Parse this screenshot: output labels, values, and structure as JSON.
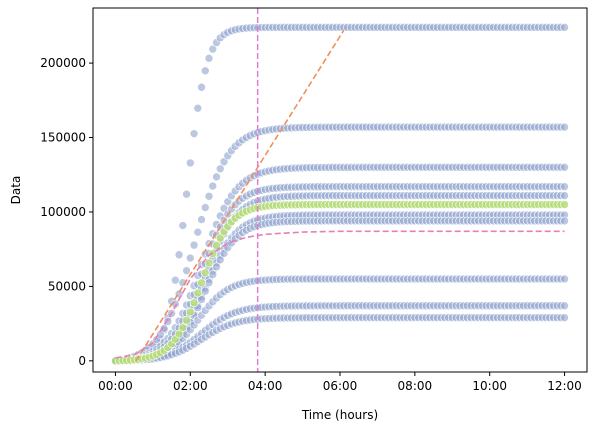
{
  "chart_data": {
    "type": "scatter",
    "title": "",
    "xlabel": "Time (hours)",
    "ylabel": "Data",
    "x_unit": "hours",
    "xlim": [
      -0.6,
      12.6
    ],
    "ylim": [
      -7500,
      237000
    ],
    "x_ticks": [
      0,
      2,
      4,
      6,
      8,
      10,
      12
    ],
    "x_tick_labels": [
      "00:00",
      "02:00",
      "04:00",
      "06:00",
      "08:00",
      "10:00",
      "12:00"
    ],
    "y_ticks": [
      0,
      50000,
      100000,
      150000,
      200000
    ],
    "y_tick_labels": [
      "0",
      "50000",
      "100000",
      "150000",
      "200000"
    ],
    "grid": false,
    "legend": "none",
    "colors": {
      "replicate_points": "#8fa3cf",
      "highlighted_points": "#b5dc7a",
      "tangent_line": "#f28e5c",
      "model_fit": "#e87fb4",
      "vertical_marker": "#e07fcb"
    },
    "series": [
      {
        "kind": "replicate",
        "highlight": false,
        "plateau": 224000,
        "growth_rate": 0.95,
        "midpoint": 1.9,
        "x": [
          0,
          0.5,
          1.0,
          1.5,
          2.0,
          3.0,
          4.0,
          5.0,
          6.0,
          8.0,
          10.0,
          12.0
        ],
        "y": [
          0,
          1500,
          18000,
          70000,
          125000,
          180000,
          203000,
          213000,
          218000,
          222000,
          223000,
          224000
        ]
      },
      {
        "kind": "replicate",
        "highlight": false,
        "plateau": 157000,
        "growth_rate": 0.55,
        "midpoint": 2.1,
        "x": [
          0,
          1.0,
          2.0,
          3.0,
          4.0,
          6.0,
          8.0,
          10.0,
          12.0
        ],
        "y": [
          0,
          10000,
          70000,
          107000,
          121000,
          138000,
          145000,
          151000,
          155000
        ]
      },
      {
        "kind": "replicate",
        "highlight": false,
        "plateau": 130000,
        "growth_rate": 0.55,
        "midpoint": 2.3,
        "x": [
          0,
          1.0,
          2.0,
          3.0,
          4.0,
          6.0,
          8.0,
          10.0,
          12.0
        ],
        "y": [
          0,
          7000,
          55000,
          88000,
          105000,
          116000,
          122000,
          126000,
          128000
        ]
      },
      {
        "kind": "replicate",
        "highlight": false,
        "plateau": 117000,
        "growth_rate": 0.6,
        "midpoint": 2.3,
        "x": [
          0,
          1.0,
          2.0,
          3.0,
          4.0,
          6.0,
          8.0,
          10.0,
          12.0
        ],
        "y": [
          0,
          6000,
          52000,
          83000,
          96000,
          104000,
          109000,
          113000,
          116000
        ]
      },
      {
        "kind": "replicate",
        "highlight": false,
        "plateau": 111000,
        "growth_rate": 0.6,
        "midpoint": 2.4,
        "x": [
          0,
          1.0,
          2.0,
          3.0,
          4.0,
          6.0,
          8.0,
          10.0,
          12.0
        ],
        "y": [
          0,
          5500,
          48000,
          78000,
          90000,
          99000,
          104000,
          108000,
          111000
        ]
      },
      {
        "kind": "replicate",
        "highlight": true,
        "plateau": 105000,
        "growth_rate": 0.65,
        "midpoint": 2.3,
        "x": [
          0,
          1.0,
          2.0,
          3.0,
          4.0,
          6.0,
          8.0,
          10.0,
          12.0
        ],
        "y": [
          0,
          5500,
          50000,
          78000,
          88000,
          95000,
          99000,
          102000,
          104000
        ]
      },
      {
        "kind": "replicate",
        "highlight": false,
        "plateau": 98000,
        "growth_rate": 0.6,
        "midpoint": 2.4,
        "x": [
          0,
          1.0,
          2.0,
          3.0,
          4.0,
          6.0,
          8.0,
          10.0,
          12.0
        ],
        "y": [
          0,
          5000,
          42000,
          68000,
          80000,
          87000,
          92000,
          95000,
          97000
        ]
      },
      {
        "kind": "replicate",
        "highlight": false,
        "plateau": 94000,
        "growth_rate": 0.6,
        "midpoint": 2.4,
        "x": [
          0,
          1.0,
          2.0,
          3.0,
          4.0,
          6.0,
          8.0,
          10.0,
          12.0
        ],
        "y": [
          0,
          4500,
          40000,
          65000,
          76000,
          83000,
          88000,
          91000,
          93000
        ]
      },
      {
        "kind": "replicate",
        "highlight": false,
        "plateau": 55000,
        "growth_rate": 0.6,
        "midpoint": 2.2,
        "x": [
          0,
          1.0,
          2.0,
          3.0,
          4.0,
          6.0,
          8.0,
          10.0,
          12.0
        ],
        "y": [
          0,
          3500,
          25000,
          38000,
          43000,
          47000,
          50000,
          52000,
          53000
        ]
      },
      {
        "kind": "replicate",
        "highlight": false,
        "plateau": 37000,
        "growth_rate": 0.55,
        "midpoint": 2.3,
        "x": [
          0,
          1.0,
          2.0,
          3.0,
          4.0,
          6.0,
          8.0,
          10.0,
          12.0
        ],
        "y": [
          0,
          3000,
          16000,
          23000,
          26000,
          29000,
          32000,
          34000,
          36000
        ]
      },
      {
        "kind": "replicate",
        "highlight": false,
        "plateau": 29000,
        "growth_rate": 0.55,
        "midpoint": 2.3,
        "x": [
          0,
          1.0,
          2.0,
          3.0,
          4.0,
          6.0,
          8.0,
          10.0,
          12.0
        ],
        "y": [
          0,
          2000,
          12000,
          18000,
          21000,
          24000,
          26000,
          27500,
          28000
        ]
      }
    ],
    "lines": [
      {
        "kind": "tangent",
        "style": "dashed",
        "x": [
          0.55,
          6.1
        ],
        "y": [
          0,
          222000
        ]
      },
      {
        "kind": "fit",
        "style": "dashed",
        "x": [
          0,
          0.5,
          1.0,
          1.5,
          2.0,
          2.5,
          3.0,
          3.5,
          4.0,
          5.0,
          6.0,
          8.0,
          10.0,
          12.0
        ],
        "y": [
          2000,
          4000,
          12000,
          32000,
          55000,
          71000,
          79000,
          83000,
          85000,
          86500,
          87000,
          87000,
          87000,
          87000
        ]
      },
      {
        "kind": "vertical",
        "style": "dashed",
        "x": 3.8
      }
    ]
  }
}
